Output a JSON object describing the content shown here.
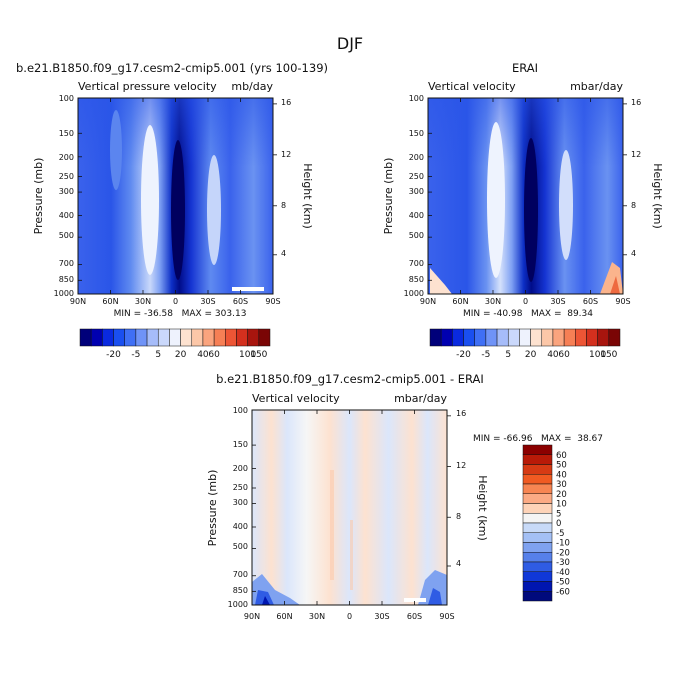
{
  "figure_title": "DJF",
  "chart_data": [
    {
      "type": "heatmap",
      "panel": "top-left",
      "title": "b.e21.B1850.f09_g17.cesm2-cmip5.001 (yrs 100-139)",
      "subtitle_left": "Vertical pressure velocity",
      "subtitle_right": "mb/day",
      "xlabel": "",
      "ylabel": "Pressure (mb)",
      "y2label": "Height (km)",
      "x_ticks": [
        "90N",
        "60N",
        "30N",
        "0",
        "30S",
        "60S",
        "90S"
      ],
      "y_ticks": [
        "100",
        "150",
        "200",
        "250",
        "300",
        "400",
        "500",
        "700",
        "850",
        "1000"
      ],
      "y2_ticks": [
        "16",
        "12",
        "8",
        "4"
      ],
      "stats": "MIN = -36.58   MAX = 303.13",
      "stats_values": {
        "min": -36.58,
        "max": 303.13
      },
      "colorbar_labels": [
        "-20",
        "-5",
        "5",
        "20",
        "40",
        "60",
        "100",
        "150"
      ],
      "colorbar_levels": [
        -40,
        -30,
        -20,
        -10,
        -5,
        0,
        5,
        10,
        20,
        30,
        40,
        50,
        60,
        80,
        100,
        125,
        150
      ],
      "colorbar_colors": [
        "#00007a",
        "#0000b0",
        "#0a2ae0",
        "#1a4ff0",
        "#3f6ff5",
        "#6f93f7",
        "#a6bcf9",
        "#cad8fb",
        "#eef2fd",
        "#fde2d0",
        "#fcc7a8",
        "#faa47e",
        "#f67f55",
        "#ed5535",
        "#d4301e",
        "#a8150e",
        "#7a0505"
      ],
      "latitudes": [
        "90N",
        "60N",
        "30N",
        "EQ",
        "30S",
        "60S",
        "90S"
      ],
      "profile_mid_troposphere": [
        -10,
        -8,
        -3,
        -30,
        -2,
        -10,
        -5
      ]
    },
    {
      "type": "heatmap",
      "panel": "top-right",
      "title": "ERAI",
      "subtitle_left": "Vertical velocity",
      "subtitle_right": "mbar/day",
      "xlabel": "",
      "ylabel": "Pressure (mb)",
      "y2label": "Height (km)",
      "x_ticks": [
        "90N",
        "60N",
        "30N",
        "0",
        "30S",
        "60S",
        "90S"
      ],
      "y_ticks": [
        "100",
        "150",
        "200",
        "250",
        "300",
        "400",
        "500",
        "700",
        "850",
        "1000"
      ],
      "y2_ticks": [
        "16",
        "12",
        "8",
        "4"
      ],
      "stats": "MIN = -40.98   MAX =  89.34",
      "stats_values": {
        "min": -40.98,
        "max": 89.34
      },
      "colorbar_labels": [
        "-20",
        "-5",
        "5",
        "20",
        "40",
        "60",
        "100",
        "150"
      ],
      "latitudes": [
        "90N",
        "60N",
        "30N",
        "EQ",
        "30S",
        "60S",
        "90S"
      ],
      "profile_mid_troposphere": [
        -10,
        -9,
        -3,
        -32,
        -3,
        -10,
        10
      ]
    },
    {
      "type": "heatmap",
      "panel": "bottom",
      "title": "b.e21.B1850.f09_g17.cesm2-cmip5.001 - ERAI",
      "subtitle_left": "Vertical velocity",
      "subtitle_right": "mbar/day",
      "xlabel": "",
      "ylabel": "Pressure (mb)",
      "y2label": "Height (km)",
      "x_ticks": [
        "90N",
        "60N",
        "30N",
        "0",
        "30S",
        "60S",
        "90S"
      ],
      "y_ticks": [
        "100",
        "150",
        "200",
        "250",
        "300",
        "400",
        "500",
        "700",
        "850",
        "1000"
      ],
      "y2_ticks": [
        "16",
        "12",
        "8",
        "4"
      ],
      "stats": "MIN = -66.96   MAX =  38.67",
      "stats_values": {
        "min": -66.96,
        "max": 38.67
      },
      "colorbar_labels": [
        "60",
        "50",
        "40",
        "30",
        "20",
        "10",
        "5",
        "0",
        "-5",
        "-10",
        "-20",
        "-30",
        "-40",
        "-50",
        "-60"
      ],
      "colorbar_colors": [
        "#8b0000",
        "#b81a08",
        "#d63a14",
        "#f05a22",
        "#f78552",
        "#fbaa84",
        "#fdd3b8",
        "#f4f4f4",
        "#c8daf8",
        "#a4c0f5",
        "#7fa2f0",
        "#5680ea",
        "#2f5ce4",
        "#1038d8",
        "#0016b0",
        "#000a7c"
      ],
      "latitudes": [
        "90N",
        "60N",
        "30N",
        "EQ",
        "30S",
        "60S",
        "90S"
      ],
      "profile_mid_troposphere": [
        -2,
        1,
        -2,
        2,
        -1,
        -2,
        0
      ]
    }
  ]
}
